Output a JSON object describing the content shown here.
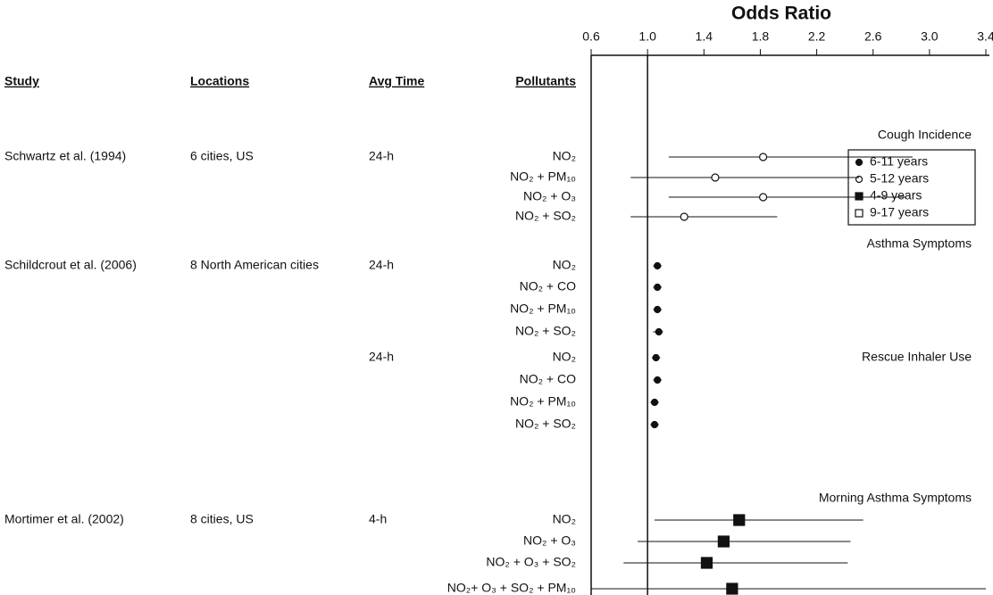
{
  "chart_data": {
    "type": "forest",
    "title": "Odds Ratio",
    "columns": [
      "Study",
      "Locations",
      "Avg Time",
      "Pollutants"
    ],
    "xlim": [
      0.6,
      3.4
    ],
    "xticks": [
      0.6,
      {
        "value": 1,
        "label": "1.0"
      },
      1.4,
      1.8,
      2.2,
      2.6,
      {
        "value": 3,
        "label": "3.0"
      },
      3.4
    ],
    "reference_line": 1,
    "series": [
      {
        "name": "6-11 years",
        "marker": "circle",
        "filled": true
      },
      {
        "name": "5-12 years",
        "marker": "circle",
        "filled": false
      },
      {
        "name": "4-9 years",
        "marker": "square",
        "filled": true
      },
      {
        "name": "9-17 years",
        "marker": "square",
        "filled": false
      }
    ],
    "rows": [
      {
        "section": "Cough Incidence",
        "study": "Schwartz et al. (1994)",
        "location": "6 cities, US",
        "avg_time": "24-h",
        "pollutant": "NO₂",
        "value": 1.82,
        "ci": [
          1.15,
          2.88
        ],
        "series": 1
      },
      {
        "pollutant": "NO₂ + PM₁₀",
        "value": 1.48,
        "ci": [
          0.88,
          2.5
        ],
        "series": 1
      },
      {
        "pollutant": "NO₂ + O₃",
        "value": 1.82,
        "ci": [
          1.15,
          2.83
        ],
        "series": 1
      },
      {
        "pollutant": "NO₂ + SO₂",
        "value": 1.26,
        "ci": [
          0.88,
          1.92
        ],
        "series": 1
      },
      {
        "section": "Asthma Symptoms",
        "study": "Schildcrout et al. (2006)",
        "location": "8 North American cities",
        "avg_time": "24-h",
        "pollutant": "NO₂",
        "value": 1.07,
        "ci": [
          1.04,
          1.1
        ],
        "series": 0
      },
      {
        "pollutant": "NO₂ + CO",
        "value": 1.07,
        "ci": [
          1.04,
          1.1
        ],
        "series": 0
      },
      {
        "pollutant": "NO₂ + PM₁₀",
        "value": 1.07,
        "ci": [
          1.04,
          1.1
        ],
        "series": 0
      },
      {
        "pollutant": "NO₂ + SO₂",
        "value": 1.08,
        "ci": [
          1.04,
          1.11
        ],
        "series": 0
      },
      {
        "section": "Rescue Inhaler Use",
        "avg_time": "24-h",
        "pollutant": "NO₂",
        "value": 1.06,
        "ci": [
          1.03,
          1.09
        ],
        "series": 0
      },
      {
        "pollutant": "NO₂ + CO",
        "value": 1.07,
        "ci": [
          1.04,
          1.1
        ],
        "series": 0
      },
      {
        "pollutant": "NO₂ + PM₁₀",
        "value": 1.05,
        "ci": [
          1.02,
          1.08
        ],
        "series": 0
      },
      {
        "pollutant": "NO₂ + SO₂",
        "value": 1.05,
        "ci": [
          1.02,
          1.08
        ],
        "series": 0
      },
      {
        "section": "Morning Asthma Symptoms",
        "study": "Mortimer et al. (2002)",
        "location": "8 cities, US",
        "avg_time": "4-h",
        "pollutant": "NO₂",
        "value": 1.65,
        "ci": [
          1.05,
          2.53
        ],
        "series": 2
      },
      {
        "pollutant": "NO₂ + O₃",
        "value": 1.54,
        "ci": [
          0.93,
          2.44
        ],
        "series": 2
      },
      {
        "pollutant": "NO₂ + O₃ + SO₂",
        "value": 1.42,
        "ci": [
          0.83,
          2.42
        ],
        "series": 2
      },
      {
        "pollutant": "NO₂+ O₃ + SO₂ + PM₁₀",
        "value": 1.6,
        "ci": [
          0.6,
          3.4
        ],
        "series": 2
      }
    ]
  }
}
